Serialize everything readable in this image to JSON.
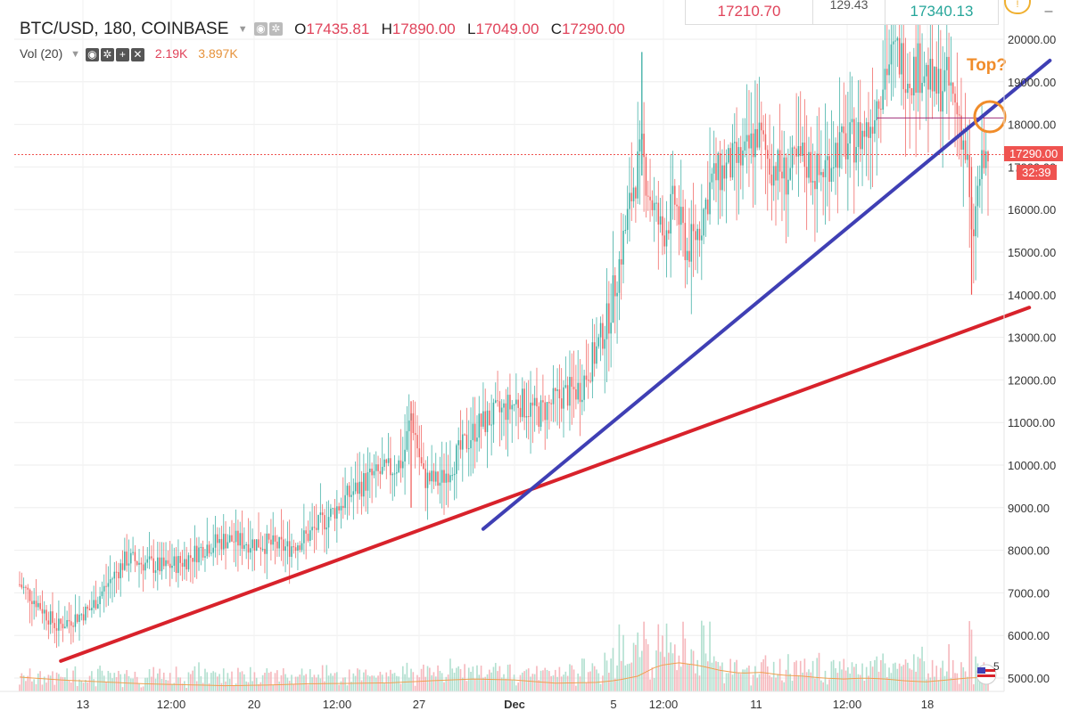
{
  "header": {
    "symbol": "BTC/USD, 180, COINBASE",
    "open_label": "O",
    "open": "17435.81",
    "high_label": "H",
    "high": "17890.00",
    "low_label": "L",
    "low": "17049.00",
    "close_label": "C",
    "close": "17290.00",
    "volume_indicator": "Vol (20)",
    "volume_value": "2.19K",
    "volume_ma": "3.897K"
  },
  "top_panel": {
    "bid": "17210.70",
    "spread": "129.43",
    "ask": "17340.13"
  },
  "price_tags": {
    "last_price": "17290.00",
    "countdown": "32:39"
  },
  "annotation": {
    "text": "Top?"
  },
  "legend_badge": "5",
  "colors": {
    "up": "#26a69a",
    "down": "#ef5350",
    "trend_blue": "#3f3fb4",
    "trend_red": "#d8222b",
    "annotation": "#f08c2a",
    "volume_ma": "#f0a050"
  },
  "chart_data": {
    "type": "candlestick",
    "ylim": [
      4800,
      20300
    ],
    "y_ticks": [
      5000,
      6000,
      7000,
      8000,
      9000,
      10000,
      11000,
      12000,
      13000,
      14000,
      15000,
      16000,
      17000,
      18000,
      19000,
      20000
    ],
    "y_tick_labels": [
      "5000.00",
      "6000.00",
      "7000.00",
      "8000.00",
      "9000.00",
      "10000.00",
      "11000.00",
      "12000.00",
      "13000.00",
      "14000.00",
      "15000.00",
      "16000.00",
      "17000.00",
      "18000.00",
      "19000.00",
      "20000.00"
    ],
    "x_labels": [
      "13",
      "12:00",
      "20",
      "12:00",
      "27",
      "Dec",
      "5",
      "12:00",
      "11",
      "12:00",
      "18"
    ],
    "x_label_pos": [
      0.055,
      0.27,
      0.28,
      0.31,
      0.39,
      0.435,
      0.535,
      0.6,
      0.7,
      0.79,
      0.84
    ],
    "price_path": [
      [
        0,
        7200
      ],
      [
        8,
        6800
      ],
      [
        18,
        6200
      ],
      [
        26,
        6400
      ],
      [
        34,
        6600
      ],
      [
        44,
        7300
      ],
      [
        52,
        7800
      ],
      [
        60,
        7700
      ],
      [
        70,
        7600
      ],
      [
        80,
        7750
      ],
      [
        90,
        8100
      ],
      [
        100,
        8250
      ],
      [
        110,
        8200
      ],
      [
        120,
        8150
      ],
      [
        130,
        8050
      ],
      [
        140,
        8350
      ],
      [
        150,
        8800
      ],
      [
        160,
        9300
      ],
      [
        170,
        9700
      ],
      [
        180,
        9900
      ],
      [
        186,
        10100
      ],
      [
        190,
        11200
      ],
      [
        196,
        9700
      ],
      [
        204,
        9600
      ],
      [
        212,
        10200
      ],
      [
        222,
        10900
      ],
      [
        232,
        11200
      ],
      [
        242,
        11500
      ],
      [
        252,
        11200
      ],
      [
        262,
        11600
      ],
      [
        272,
        11800
      ],
      [
        280,
        12700
      ],
      [
        286,
        13500
      ],
      [
        292,
        15000
      ],
      [
        298,
        16600
      ],
      [
        302,
        17300
      ],
      [
        306,
        16300
      ],
      [
        312,
        15400
      ],
      [
        318,
        16200
      ],
      [
        324,
        15000
      ],
      [
        330,
        15600
      ],
      [
        336,
        16700
      ],
      [
        344,
        17000
      ],
      [
        352,
        17200
      ],
      [
        358,
        17800
      ],
      [
        364,
        17100
      ],
      [
        372,
        16800
      ],
      [
        380,
        17200
      ],
      [
        388,
        16800
      ],
      [
        396,
        17400
      ],
      [
        404,
        17600
      ],
      [
        412,
        17900
      ],
      [
        420,
        19300
      ],
      [
        426,
        19700
      ],
      [
        432,
        19200
      ],
      [
        438,
        19400
      ],
      [
        444,
        18800
      ],
      [
        450,
        19000
      ],
      [
        456,
        18200
      ],
      [
        460,
        17000
      ],
      [
        462,
        15100
      ],
      [
        466,
        16800
      ],
      [
        470,
        17290
      ]
    ],
    "volume_scale_max": 8400,
    "volume_ma_path": [
      [
        0,
        750
      ],
      [
        20,
        600
      ],
      [
        40,
        500
      ],
      [
        60,
        400
      ],
      [
        80,
        350
      ],
      [
        100,
        300
      ],
      [
        120,
        330
      ],
      [
        140,
        400
      ],
      [
        160,
        420
      ],
      [
        180,
        450
      ],
      [
        200,
        560
      ],
      [
        220,
        650
      ],
      [
        240,
        600
      ],
      [
        260,
        430
      ],
      [
        280,
        470
      ],
      [
        290,
        580
      ],
      [
        300,
        800
      ],
      [
        310,
        1350
      ],
      [
        320,
        1500
      ],
      [
        330,
        1350
      ],
      [
        340,
        1100
      ],
      [
        350,
        950
      ],
      [
        360,
        1000
      ],
      [
        370,
        850
      ],
      [
        380,
        800
      ],
      [
        390,
        700
      ],
      [
        400,
        650
      ],
      [
        410,
        700
      ],
      [
        420,
        650
      ],
      [
        430,
        550
      ],
      [
        440,
        500
      ],
      [
        450,
        600
      ],
      [
        460,
        700
      ],
      [
        470,
        750
      ]
    ],
    "trendlines": [
      {
        "color": "blue",
        "from": [
          225,
          8500
        ],
        "to": [
          500,
          19500
        ]
      },
      {
        "color": "red",
        "from": [
          20,
          5400
        ],
        "to": [
          490,
          13700
        ]
      }
    ],
    "horizontal_line": {
      "y": 18150,
      "from": 416,
      "to": 470
    },
    "last_price": 17290,
    "grid": true
  }
}
